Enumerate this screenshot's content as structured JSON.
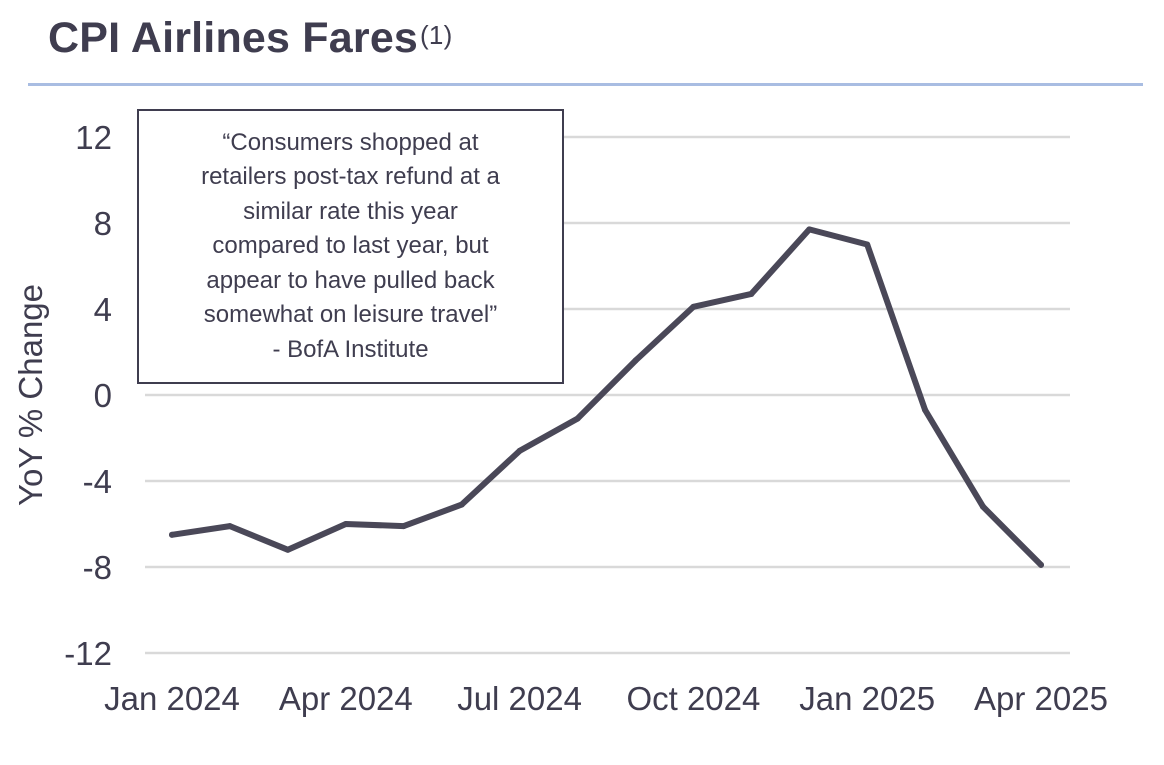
{
  "title": "CPI Airlines Fares",
  "title_superscript": "(1)",
  "colors": {
    "line": "#4a4858",
    "grid": "#d9d9d9",
    "text": "#3f3d4f",
    "rule": "#a9bde2"
  },
  "quote": {
    "lines": [
      "“Consumers shopped at",
      "retailers post-tax refund at a",
      "similar rate this year",
      "compared to last year, but",
      "appear to have pulled back",
      "somewhat on leisure travel”",
      "- BofA Institute"
    ]
  },
  "chart_data": {
    "type": "line",
    "ylabel": "YoY % Change",
    "ylim": [
      -12,
      12
    ],
    "yticks": [
      12,
      8,
      4,
      0,
      -4,
      -8,
      -12
    ],
    "ytick_labels": [
      "12",
      "8",
      "4",
      "0",
      "-4",
      "-8",
      "-12"
    ],
    "xtick_labels": [
      "Jan 2024",
      "Apr 2024",
      "Jul 2024",
      "Oct 2024",
      "Jan 2025",
      "Apr 2025"
    ],
    "grid": true,
    "x": [
      "Jan 2024",
      "Feb 2024",
      "Mar 2024",
      "Apr 2024",
      "May 2024",
      "Jun 2024",
      "Jul 2024",
      "Aug 2024",
      "Sep 2024",
      "Oct 2024",
      "Nov 2024",
      "Dec 2024",
      "Jan 2025",
      "Feb 2025",
      "Mar 2025",
      "Apr 2025"
    ],
    "series": [
      {
        "values": [
          -6.5,
          -6.1,
          -7.2,
          -6.0,
          -6.1,
          -5.1,
          -2.6,
          -1.1,
          1.6,
          4.1,
          4.7,
          7.7,
          7.0,
          -0.7,
          -5.2,
          -7.9
        ]
      }
    ]
  }
}
